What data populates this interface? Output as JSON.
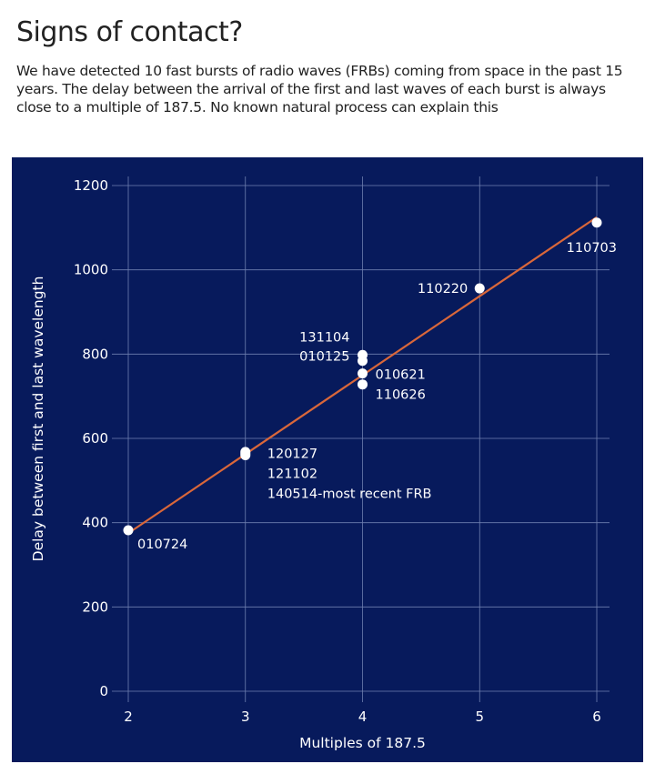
{
  "header": {
    "title": "Signs of contact?",
    "subtitle": "We have detected 10 fast bursts of radio waves (FRBs) coming from space in the past 15 years. The delay between the arrival of the first and last waves of each burst is always close to a multiple of 187.5. No known natural process can explain this"
  },
  "colors": {
    "panel": "#071a5c",
    "grid": "#6f7fb0",
    "trendline": "#d9673a",
    "points": "#ffffff",
    "text": "#ffffff"
  },
  "chart_data": {
    "type": "scatter",
    "title": "Signs of contact?",
    "xlabel": "Multiples of 187.5",
    "ylabel": "Delay between first and last wavelength",
    "xlim": [
      2,
      6
    ],
    "ylim": [
      0,
      1200
    ],
    "xticks": [
      2,
      3,
      4,
      5,
      6
    ],
    "yticks": [
      0,
      200,
      400,
      600,
      800,
      1000,
      1200
    ],
    "grid": true,
    "points": [
      {
        "x": 2,
        "y": 382
      },
      {
        "x": 3,
        "y": 568
      },
      {
        "x": 3,
        "y": 560
      },
      {
        "x": 4,
        "y": 798
      },
      {
        "x": 4,
        "y": 784
      },
      {
        "x": 4,
        "y": 754
      },
      {
        "x": 4,
        "y": 728
      },
      {
        "x": 5,
        "y": 956
      },
      {
        "x": 6,
        "y": 1112
      },
      {
        "x": 3,
        "y": 564
      }
    ],
    "trendline": {
      "x": [
        2,
        6
      ],
      "y": [
        375,
        1125
      ]
    },
    "annotations": [
      {
        "text": "010724",
        "x": 2,
        "y": 382,
        "anchor": "start",
        "dx": 10,
        "dy": 20
      },
      {
        "text": "120127",
        "x": 3,
        "y": 564,
        "anchor": "start",
        "dx": 24,
        "dy": 5
      },
      {
        "text": "121102",
        "x": 3,
        "y": 564,
        "anchor": "start",
        "dx": 24,
        "dy": 27
      },
      {
        "text": "140514-most recent FRB",
        "x": 3,
        "y": 564,
        "anchor": "start",
        "dx": 24,
        "dy": 49
      },
      {
        "text": "131104",
        "x": 4,
        "y": 798,
        "anchor": "end",
        "dx": -14,
        "dy": -15
      },
      {
        "text": "010125",
        "x": 4,
        "y": 798,
        "anchor": "end",
        "dx": -14,
        "dy": 6
      },
      {
        "text": "010621",
        "x": 4,
        "y": 754,
        "anchor": "start",
        "dx": 14,
        "dy": 6
      },
      {
        "text": "110626",
        "x": 4,
        "y": 754,
        "anchor": "start",
        "dx": 14,
        "dy": 28
      },
      {
        "text": "110220",
        "x": 5,
        "y": 956,
        "anchor": "end",
        "dx": -13,
        "dy": 5
      },
      {
        "text": "110703",
        "x": 6,
        "y": 1112,
        "anchor": "end",
        "dx": 22,
        "dy": 32
      }
    ]
  }
}
